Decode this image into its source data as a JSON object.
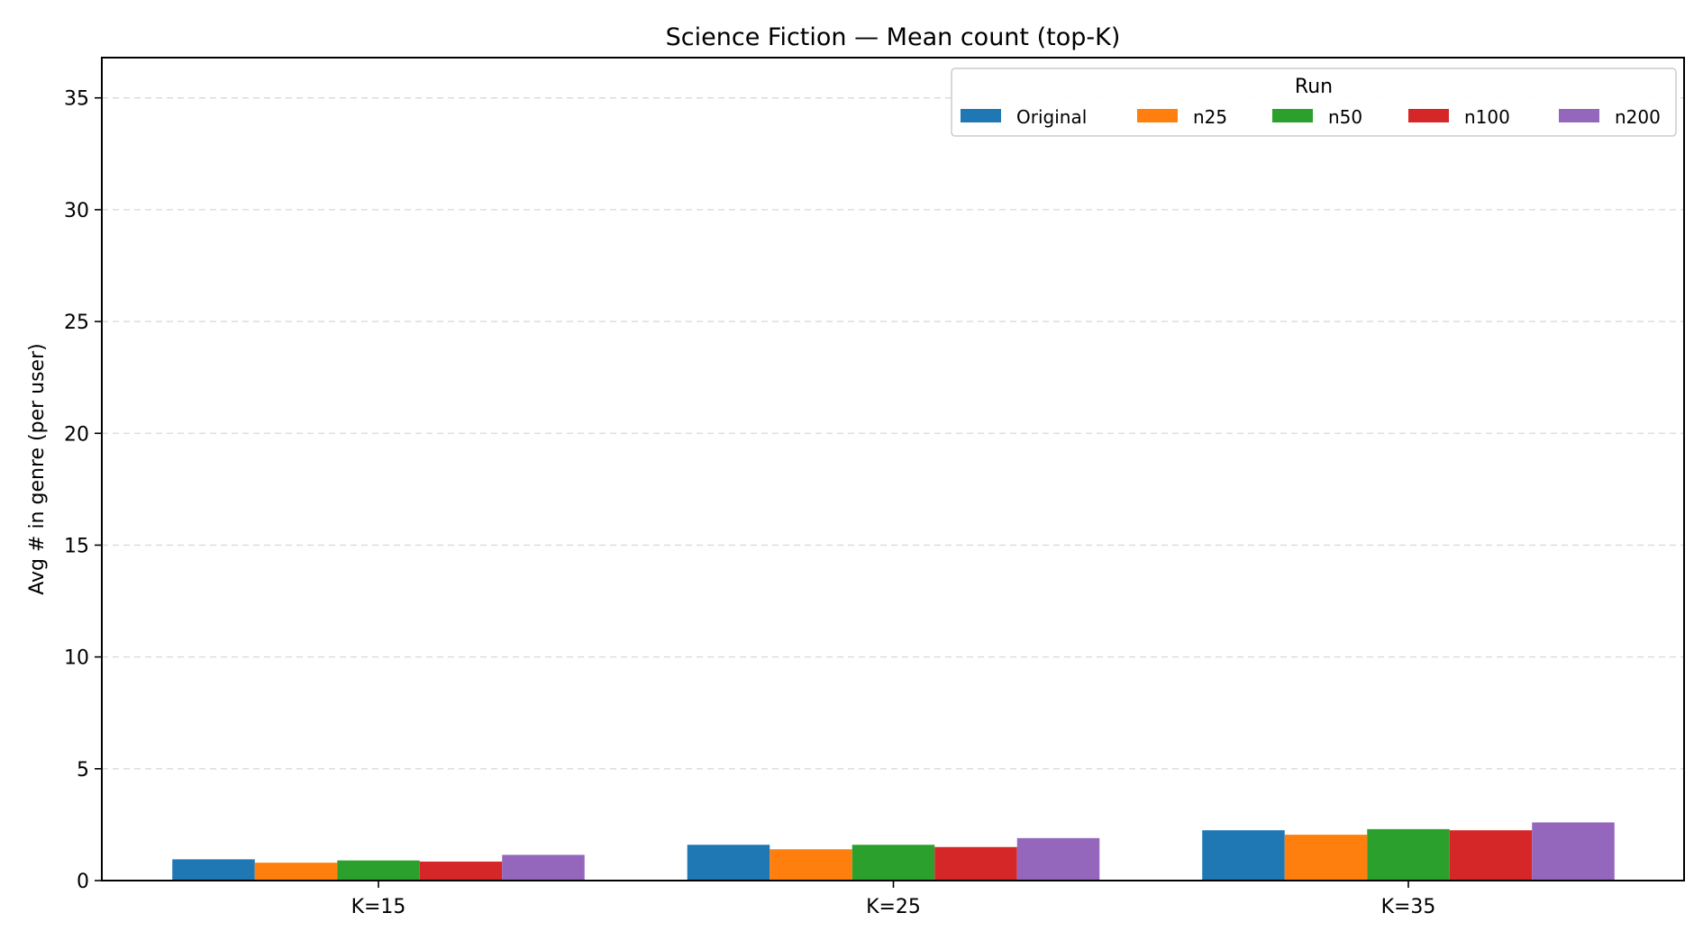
{
  "chart_data": {
    "type": "bar",
    "title": "Science Fiction — Mean count (top-K)",
    "xlabel": "",
    "ylabel": "Avg # in genre (per user)",
    "ylim": [
      0,
      36.8
    ],
    "yticks": [
      0,
      5,
      10,
      15,
      20,
      25,
      30,
      35
    ],
    "grid": "y-dashed",
    "legend": {
      "title": "Run",
      "placement": "top-right",
      "columns": 5
    },
    "categories": [
      "K=15",
      "K=25",
      "K=35"
    ],
    "series": [
      {
        "name": "Original",
        "color": "#1f77b4",
        "values": [
          0.95,
          1.6,
          2.25
        ]
      },
      {
        "name": "n25",
        "color": "#ff7f0e",
        "values": [
          0.8,
          1.4,
          2.05
        ]
      },
      {
        "name": "n50",
        "color": "#2ca02c",
        "values": [
          0.9,
          1.6,
          2.3
        ]
      },
      {
        "name": "n100",
        "color": "#d62728",
        "values": [
          0.85,
          1.5,
          2.25
        ]
      },
      {
        "name": "n200",
        "color": "#9467bd",
        "values": [
          1.15,
          1.9,
          2.6
        ]
      }
    ]
  }
}
